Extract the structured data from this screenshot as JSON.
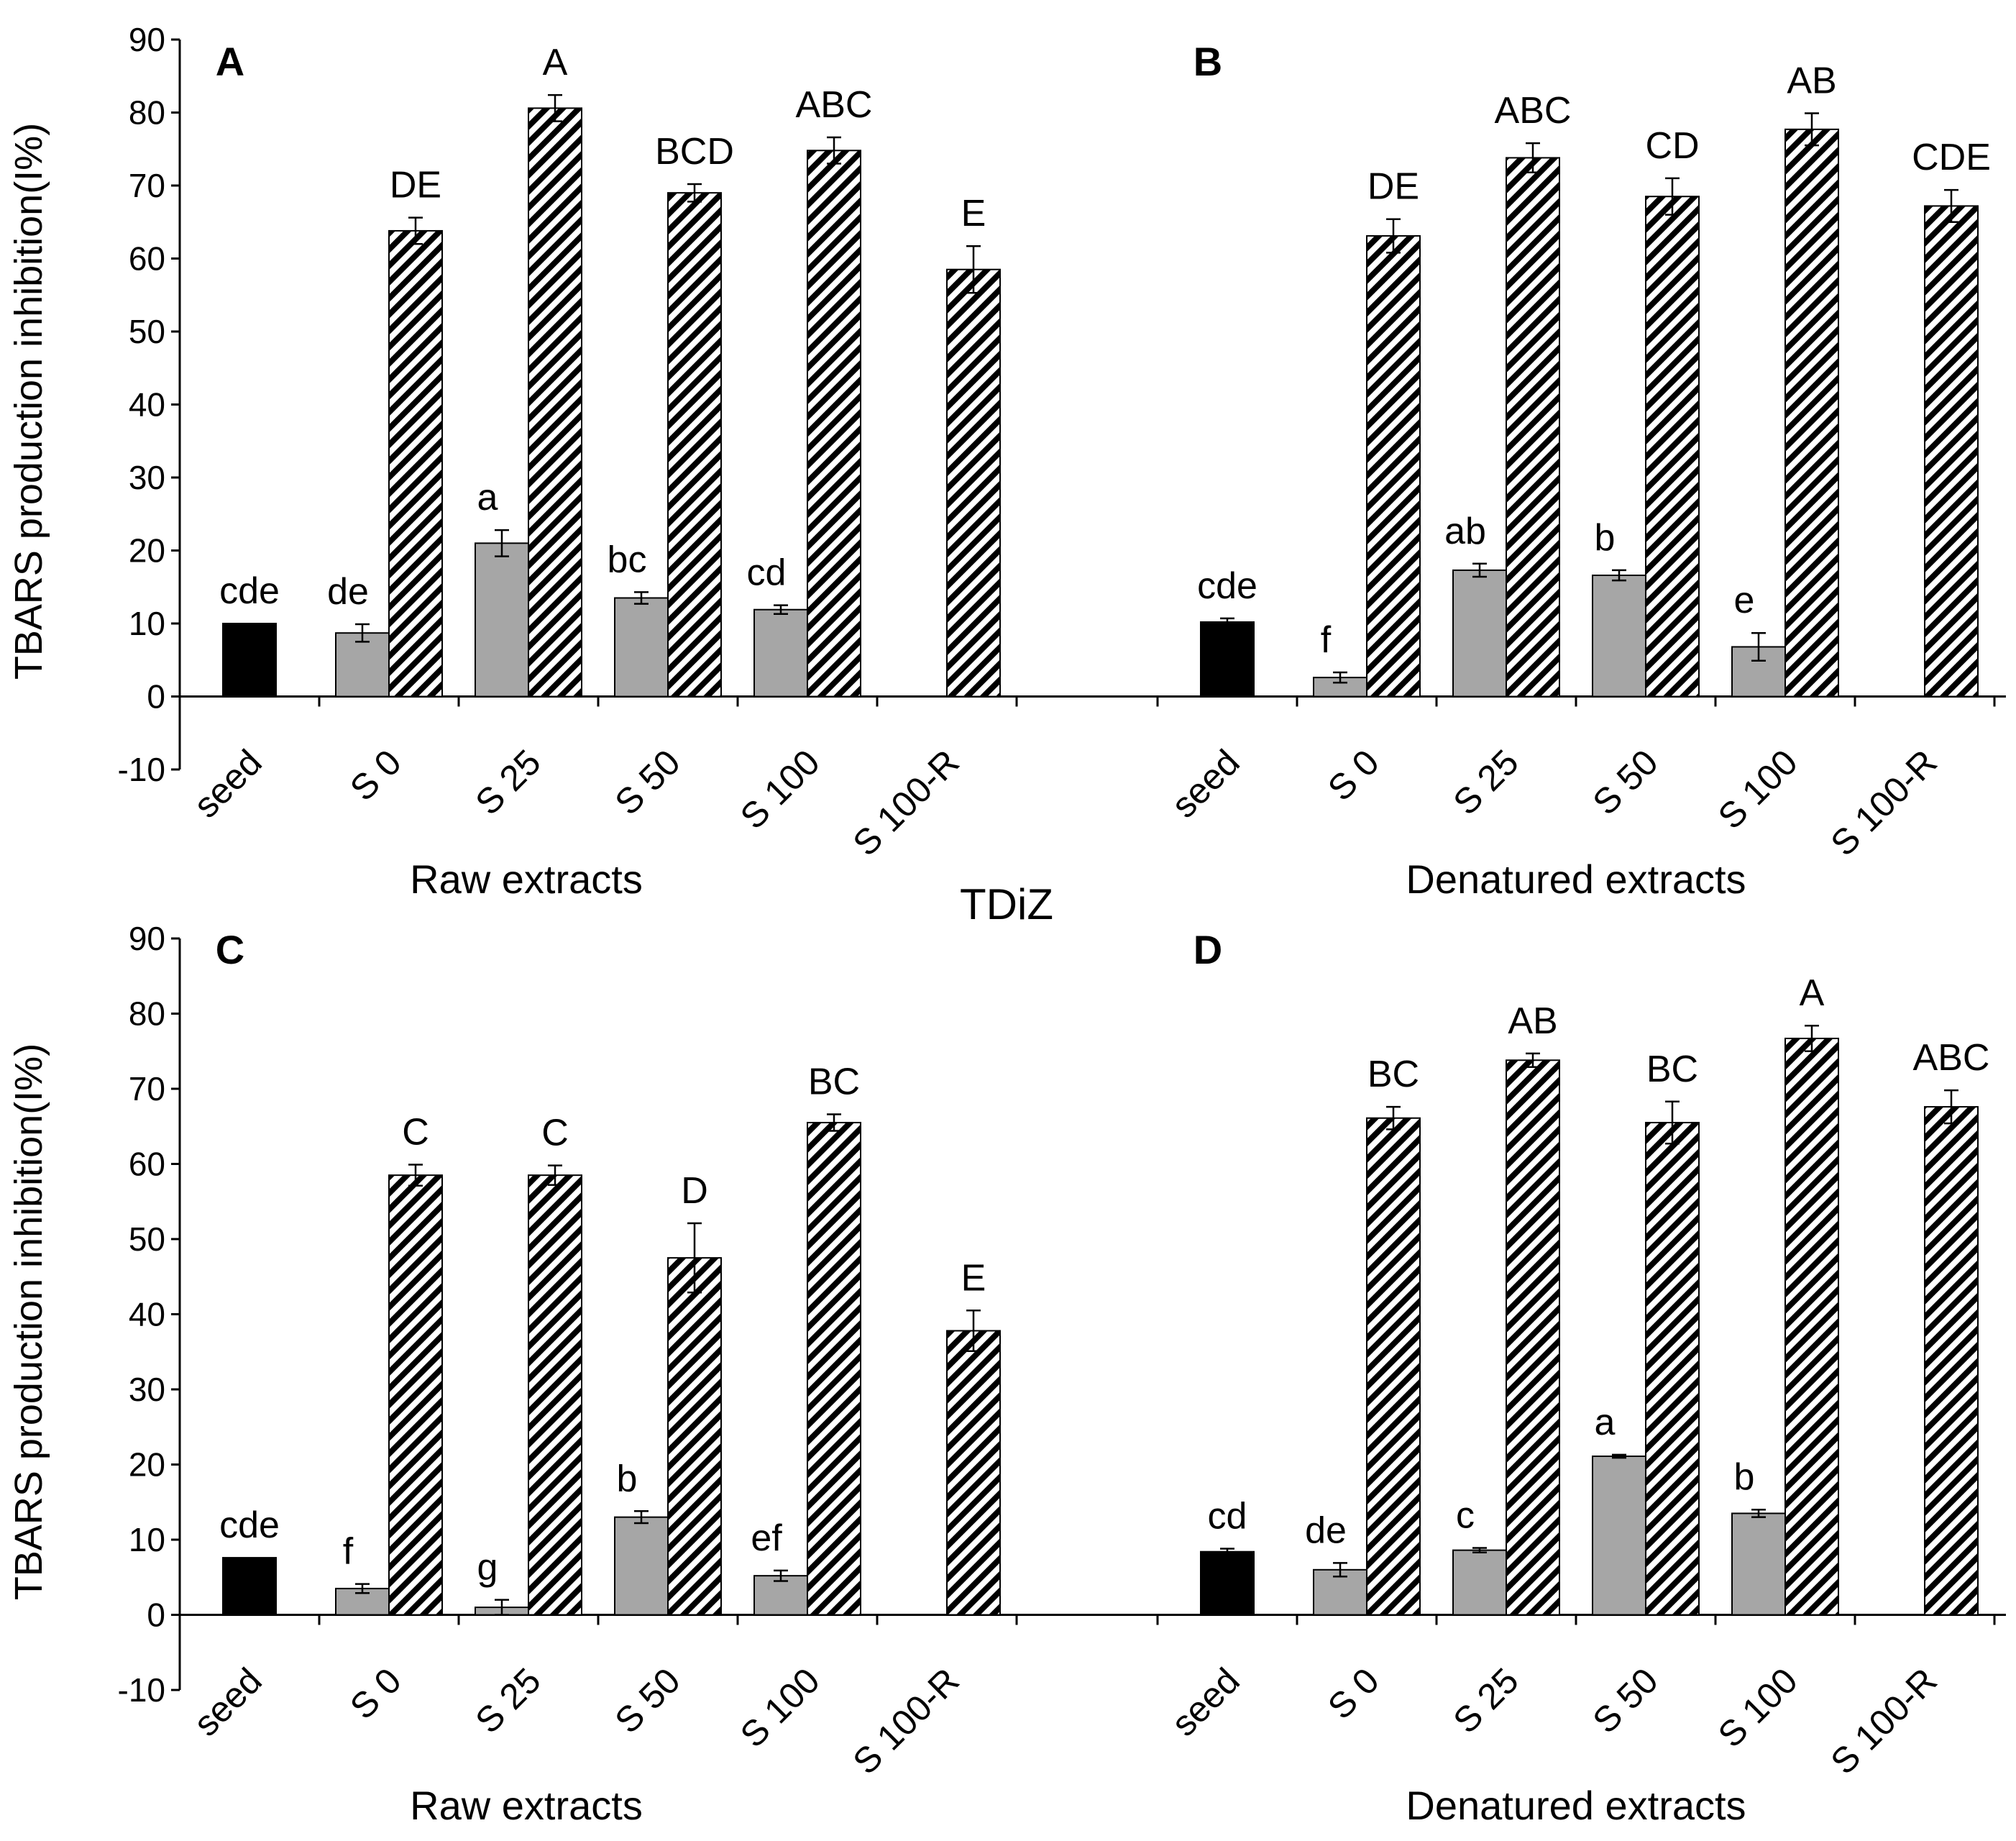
{
  "figure": {
    "center_label": "TDiZ",
    "ylabel": "TBARS production inhibition(I%)",
    "groups": [
      "Raw extracts",
      "Denatured extracts"
    ],
    "categories": [
      "seed",
      "S 0",
      "S 25",
      "S 50",
      "S 100",
      "S 100-R"
    ],
    "ylim": [
      -10,
      90
    ],
    "yticks": [
      "-10",
      "0",
      "10",
      "20",
      "30",
      "40",
      "50",
      "60",
      "70",
      "80",
      "90"
    ],
    "colors": {
      "seed": "#000000",
      "gray": "#a6a6a6",
      "hatch": "#000000"
    }
  },
  "chart_data": [
    {
      "type": "bar",
      "panel": "A",
      "group": "Raw extracts",
      "categories": [
        "seed",
        "S 0",
        "S 25",
        "S 50",
        "S 100",
        "S 100-R"
      ],
      "seed": {
        "value": 10.0,
        "error": 0,
        "label": "cde"
      },
      "gray": {
        "values": [
          8.7,
          21.0,
          13.5,
          11.9
        ],
        "errors": [
          1.2,
          1.8,
          0.8,
          0.6
        ],
        "labels": [
          "de",
          "a",
          "bc",
          "cd"
        ]
      },
      "hatch": {
        "values": [
          63.8,
          80.6,
          69.0,
          74.8,
          58.5
        ],
        "errors": [
          1.8,
          1.8,
          1.2,
          1.8,
          3.2
        ],
        "labels": [
          "DE",
          "A",
          "BCD",
          "ABC",
          "E"
        ]
      }
    },
    {
      "type": "bar",
      "panel": "B",
      "group": "Denatured extracts",
      "categories": [
        "seed",
        "S 0",
        "S 25",
        "S 50",
        "S 100",
        "S 100-R"
      ],
      "seed": {
        "value": 10.2,
        "error": 0.5,
        "label": "cde"
      },
      "gray": {
        "values": [
          2.6,
          17.3,
          16.6,
          6.8
        ],
        "errors": [
          0.7,
          0.9,
          0.7,
          1.9
        ],
        "labels": [
          "f",
          "ab",
          "b",
          "e"
        ]
      },
      "hatch": {
        "values": [
          63.1,
          73.8,
          68.5,
          77.7,
          67.2
        ],
        "errors": [
          2.3,
          2.0,
          2.5,
          2.2,
          2.2
        ],
        "labels": [
          "DE",
          "ABC",
          "CD",
          "AB",
          "CDE"
        ]
      }
    },
    {
      "type": "bar",
      "panel": "C",
      "group": "Raw extracts",
      "categories": [
        "seed",
        "S 0",
        "S 25",
        "S 50",
        "S 100",
        "S 100-R"
      ],
      "seed": {
        "value": 7.6,
        "error": 0,
        "label": "cde"
      },
      "gray": {
        "values": [
          3.5,
          1.0,
          13.0,
          5.2
        ],
        "errors": [
          0.6,
          1.0,
          0.8,
          0.7
        ],
        "labels": [
          "f",
          "g",
          "b",
          "ef"
        ]
      },
      "hatch": {
        "values": [
          58.5,
          58.5,
          47.5,
          65.5,
          37.8
        ],
        "errors": [
          1.4,
          1.3,
          4.6,
          1.1,
          2.7
        ],
        "labels": [
          "C",
          "C",
          "D",
          "BC",
          "E"
        ]
      }
    },
    {
      "type": "bar",
      "panel": "D",
      "group": "Denatured extracts",
      "categories": [
        "seed",
        "S 0",
        "S 25",
        "S 50",
        "S 100",
        "S 100-R"
      ],
      "seed": {
        "value": 8.4,
        "error": 0.4,
        "label": "cd"
      },
      "gray": {
        "values": [
          6.0,
          8.6,
          21.1,
          13.5
        ],
        "errors": [
          0.9,
          0.3,
          0.2,
          0.5
        ],
        "labels": [
          "de",
          "c",
          "a",
          "b"
        ]
      },
      "hatch": {
        "values": [
          66.1,
          73.8,
          65.5,
          76.7,
          67.6
        ],
        "errors": [
          1.5,
          0.9,
          2.8,
          1.7,
          2.2
        ],
        "labels": [
          "BC",
          "AB",
          "BC",
          "A",
          "ABC"
        ]
      }
    }
  ]
}
